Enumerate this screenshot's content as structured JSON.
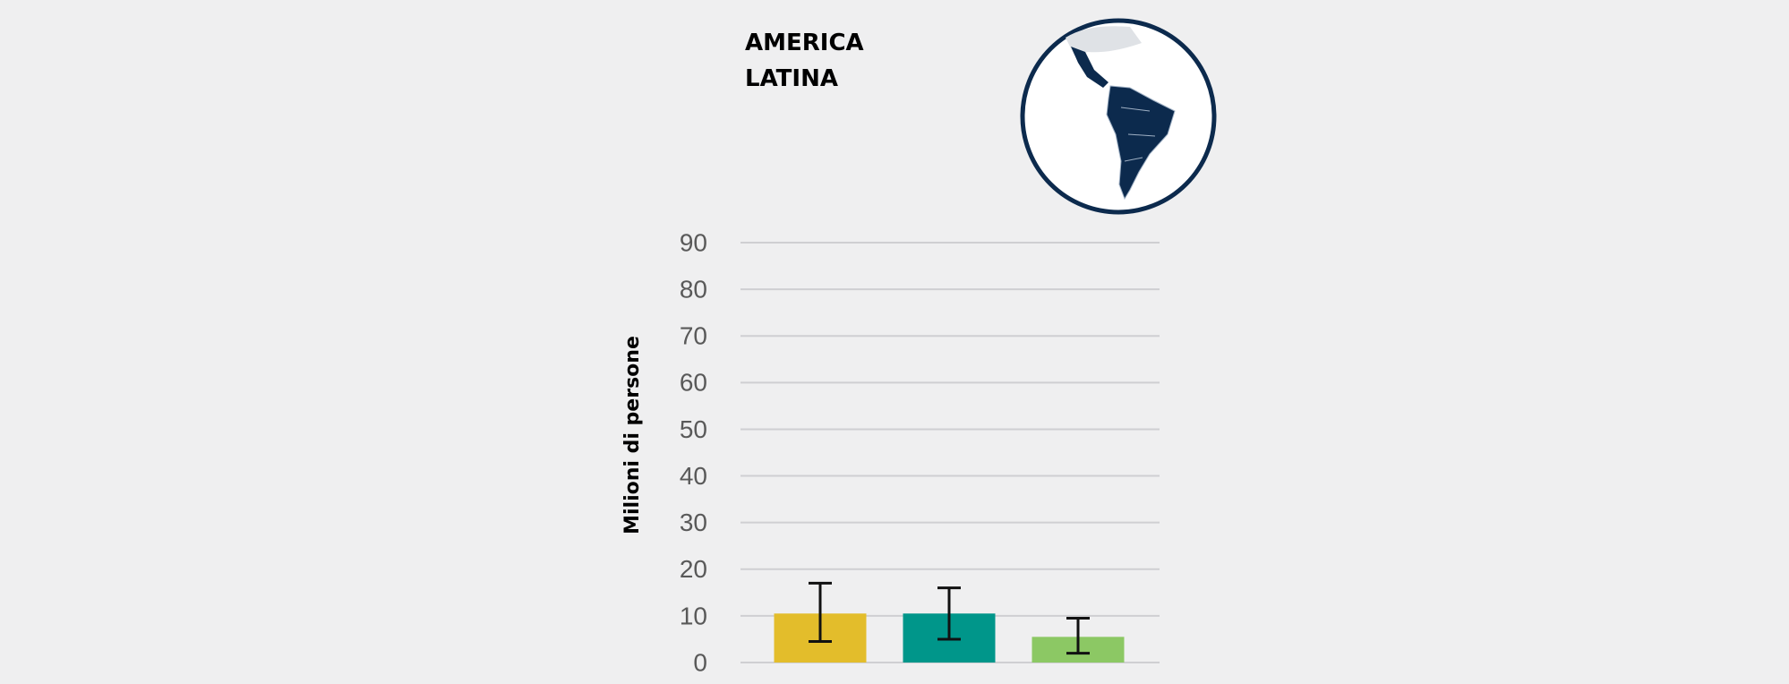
{
  "chart_data": {
    "type": "bar",
    "title": "AMERICA LATINA",
    "y_label": "Milioni di persone",
    "categories": [
      null,
      null,
      null
    ],
    "values": [
      10.5,
      10.5,
      5.5
    ],
    "errors_minus": [
      6,
      5.5,
      3.5
    ],
    "errors_plus": [
      6.5,
      5.5,
      4
    ],
    "colors": [
      "#e3bd2b",
      "#00968a",
      "#8cc864"
    ],
    "ylim": [
      0,
      90
    ],
    "yticks": [
      0,
      10,
      20,
      30,
      40,
      50,
      60,
      70,
      80,
      90
    ],
    "grid": true
  }
}
